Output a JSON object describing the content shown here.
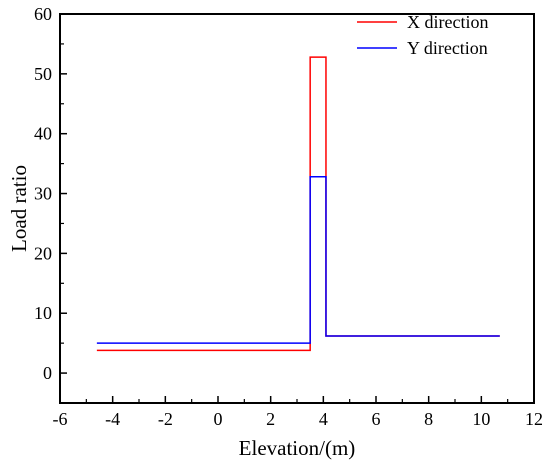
{
  "chart_data": {
    "type": "line",
    "xlabel": "Elevation/(m)",
    "ylabel": "Load ratio",
    "xlim": [
      -6,
      12
    ],
    "ylim": [
      -5,
      60
    ],
    "xticks": [
      -6,
      -4,
      -2,
      0,
      2,
      4,
      6,
      8,
      10,
      12
    ],
    "yticks": [
      0,
      10,
      20,
      30,
      40,
      50,
      60
    ],
    "grid": false,
    "legend_position": "top-right",
    "series": [
      {
        "name": "X direction",
        "color": "#ff0000",
        "x": [
          -4.6,
          3.5,
          3.5,
          4.1,
          4.1,
          10.7
        ],
        "y": [
          3.8,
          3.8,
          52.8,
          52.8,
          6.2,
          6.2
        ]
      },
      {
        "name": "Y direction",
        "color": "#0000ff",
        "x": [
          -4.6,
          3.5,
          3.5,
          4.1,
          4.1,
          10.7
        ],
        "y": [
          5.0,
          5.0,
          32.8,
          32.8,
          6.2,
          6.2
        ]
      }
    ]
  }
}
